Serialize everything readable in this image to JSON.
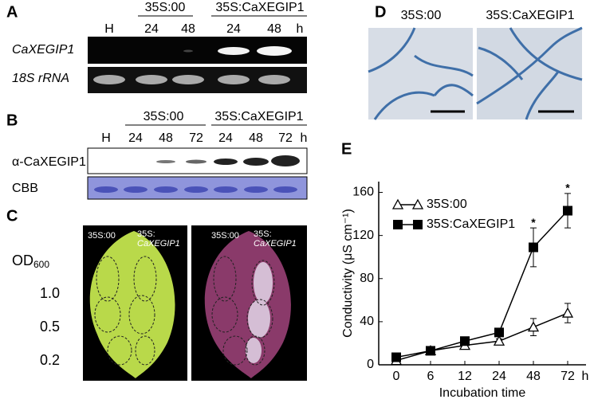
{
  "panels": {
    "A": {
      "label": "A",
      "groups": [
        "35S:00",
        "35S:CaXEGIP1"
      ],
      "lanes": [
        "H",
        "24",
        "48",
        "24",
        "48"
      ],
      "unit": "h",
      "rows": [
        "CaXEGIP1",
        "18S rRNA"
      ]
    },
    "B": {
      "label": "B",
      "groups": [
        "35S:00",
        "35S:CaXEGIP1"
      ],
      "lanes": [
        "H",
        "24",
        "48",
        "72",
        "24",
        "48",
        "72"
      ],
      "unit": "h",
      "rows": [
        "α-CaXEGIP1",
        "CBB"
      ]
    },
    "C": {
      "label": "C",
      "od_label": "OD",
      "od_sub": "600",
      "levels": [
        "1.0",
        "0.5",
        "0.2"
      ],
      "leaf_labels": [
        "35S:00",
        "35S:",
        "CaXEGIP1"
      ]
    },
    "D": {
      "label": "D",
      "labels": [
        "35S:00",
        "35S:CaXEGIP1"
      ]
    },
    "E": {
      "label": "E"
    }
  },
  "chart_data": {
    "type": "line",
    "x_label": "Incubation time",
    "y_label": "Conductivity (μS cm⁻¹)",
    "categories": [
      "0",
      "6",
      "12",
      "24",
      "48",
      "72"
    ],
    "x_unit": "h",
    "series": [
      {
        "name": "35S:00",
        "color": "#000000",
        "marker": "open-triangle",
        "values": [
          4,
          13,
          18,
          22,
          35,
          48
        ],
        "errors": [
          1,
          1,
          2,
          2,
          8,
          9
        ]
      },
      {
        "name": "35S:CaXEGIP1",
        "color": "#000000",
        "marker": "filled-square",
        "values": [
          7,
          13,
          22,
          30,
          109,
          143
        ],
        "errors": [
          1,
          1,
          2,
          2,
          18,
          16
        ]
      }
    ],
    "significance": [
      null,
      null,
      null,
      null,
      "*",
      "*"
    ],
    "ylim": [
      0,
      170
    ],
    "yticks": [
      0,
      40,
      80,
      120,
      160
    ],
    "legend": "upper-left"
  }
}
